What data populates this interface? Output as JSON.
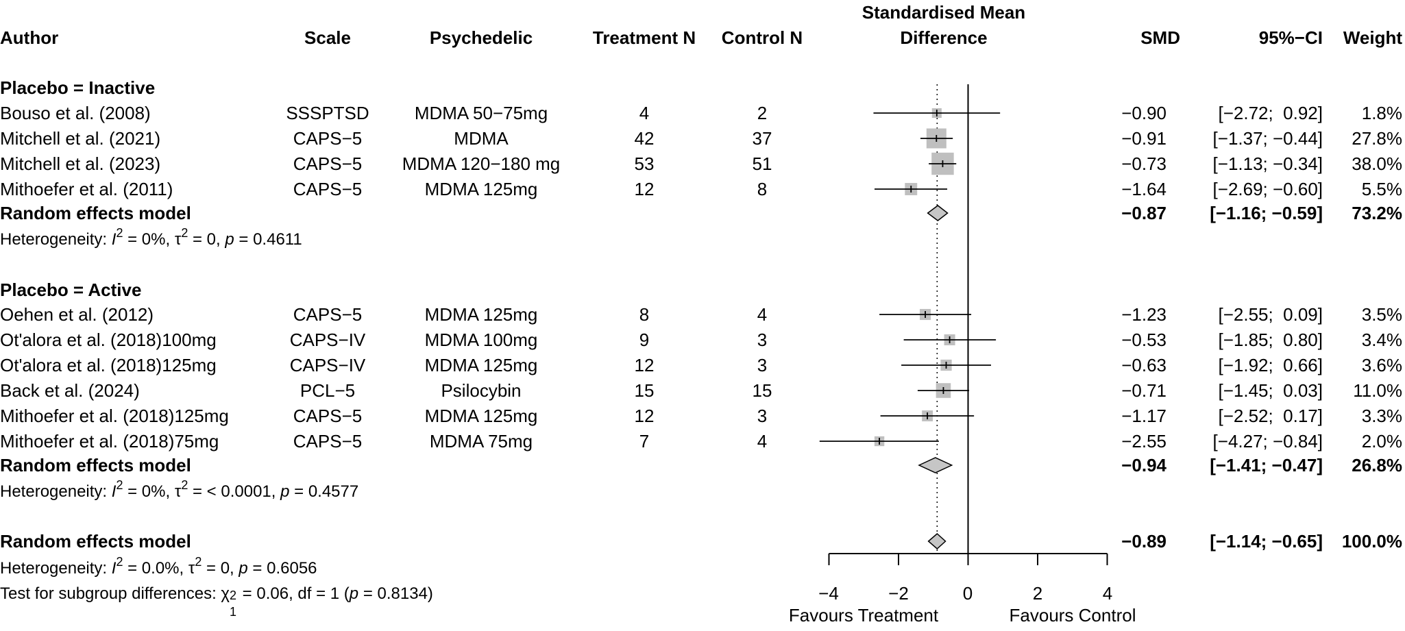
{
  "header": {
    "author": "Author",
    "scale": "Scale",
    "psychedelic": "Psychedelic",
    "treatment_n": "Treatment N",
    "control_n": "Control N",
    "smd_title_line1": "Standardised Mean",
    "smd_title_line2": "Difference",
    "smd": "SMD",
    "ci": "95%−CI",
    "weight": "Weight"
  },
  "groups": [
    {
      "title": "Placebo = Inactive",
      "studies": [
        {
          "author": "Bouso et al. (2008)",
          "scale": "SSSPTSD",
          "psychedelic": "MDMA 50−75mg",
          "tn": "4",
          "cn": "2",
          "smd": "−0.90",
          "ci": "[−2.72;  0.92]",
          "weight": "1.8%"
        },
        {
          "author": "Mitchell et al. (2021)",
          "scale": "CAPS−5",
          "psychedelic": "MDMA",
          "tn": "42",
          "cn": "37",
          "smd": "−0.91",
          "ci": "[−1.37; −0.44]",
          "weight": "27.8%"
        },
        {
          "author": "Mitchell et al. (2023)",
          "scale": "CAPS−5",
          "psychedelic": "MDMA 120−180 mg",
          "tn": "53",
          "cn": "51",
          "smd": "−0.73",
          "ci": "[−1.13; −0.34]",
          "weight": "38.0%"
        },
        {
          "author": "Mithoefer et al. (2011)",
          "scale": "CAPS−5",
          "psychedelic": "MDMA 125mg",
          "tn": "12",
          "cn": "8",
          "smd": "−1.64",
          "ci": "[−2.69; −0.60]",
          "weight": "5.5%"
        }
      ],
      "model": {
        "label": "Random effects model",
        "smd": "−0.87",
        "ci": "[−1.16; −0.59]",
        "weight": "73.2%"
      },
      "heterogeneity": {
        "prefix": "Heterogeneity: ",
        "i2": "I",
        "i2_value": " = 0%, τ",
        "tau2_value": " = 0, ",
        "p": "p",
        "p_value": " = 0.4611"
      }
    },
    {
      "title": "Placebo = Active",
      "studies": [
        {
          "author": "Oehen et al. (2012)",
          "scale": "CAPS−5",
          "psychedelic": "MDMA 125mg",
          "tn": "8",
          "cn": "4",
          "smd": "−1.23",
          "ci": "[−2.55;  0.09]",
          "weight": "3.5%"
        },
        {
          "author": "Ot'alora et al. (2018)100mg",
          "scale": "CAPS−IV",
          "psychedelic": "MDMA 100mg",
          "tn": "9",
          "cn": "3",
          "smd": "−0.53",
          "ci": "[−1.85;  0.80]",
          "weight": "3.4%"
        },
        {
          "author": "Ot'alora et al. (2018)125mg",
          "scale": "CAPS−IV",
          "psychedelic": "MDMA 125mg",
          "tn": "12",
          "cn": "3",
          "smd": "−0.63",
          "ci": "[−1.92;  0.66]",
          "weight": "3.6%"
        },
        {
          "author": "Back et al. (2024)",
          "scale": "PCL−5",
          "psychedelic": "Psilocybin",
          "tn": "15",
          "cn": "15",
          "smd": "−0.71",
          "ci": "[−1.45;  0.03]",
          "weight": "11.0%"
        },
        {
          "author": "Mithoefer et al. (2018)125mg",
          "scale": "CAPS−5",
          "psychedelic": "MDMA 125mg",
          "tn": "12",
          "cn": "3",
          "smd": "−1.17",
          "ci": "[−2.52;  0.17]",
          "weight": "3.3%"
        },
        {
          "author": "Mithoefer et al. (2018)75mg",
          "scale": "CAPS−5",
          "psychedelic": "MDMA 75mg",
          "tn": "7",
          "cn": "4",
          "smd": "−2.55",
          "ci": "[−4.27; −0.84]",
          "weight": "2.0%"
        }
      ],
      "model": {
        "label": "Random effects model",
        "smd": "−0.94",
        "ci": "[−1.41; −0.47]",
        "weight": "26.8%"
      },
      "heterogeneity": {
        "prefix": "Heterogeneity: ",
        "i2": "I",
        "i2_value": " = 0%, τ",
        "tau2_value": " = < 0.0001, ",
        "p": "p",
        "p_value": " = 0.4577"
      }
    }
  ],
  "overall": {
    "label": "Random effects model",
    "smd": "−0.89",
    "ci": "[−1.14; −0.65]",
    "weight": "100.0%",
    "heterogeneity": {
      "prefix": "Heterogeneity: ",
      "i2": "I",
      "i2_value": " = 0.0%, τ",
      "tau2_value": " = 0, ",
      "p": "p",
      "p_value": " = 0.6056"
    },
    "subgroup_test": {
      "prefix": "Test for subgroup differences: χ",
      "df1": "1",
      "chi_value": " = 0.06, df = 1 (",
      "p": "p",
      "p_value": " = 0.8134)"
    }
  },
  "superscript_2": "2",
  "axis": {
    "ticks": [
      -4,
      -2,
      0,
      2,
      4
    ],
    "tick_labels": [
      "−4",
      "−2",
      "0",
      "2",
      "4"
    ],
    "left_label": "Favours Treatment",
    "right_label": "Favours Control"
  },
  "chart_data": {
    "type": "forest",
    "title": "Standardised Mean Difference",
    "xlim": [
      -4,
      4
    ],
    "null_line": 0,
    "pooled_reference_line": -0.89,
    "series": [
      {
        "name": "Placebo = Inactive",
        "studies": [
          {
            "label": "Bouso et al. (2008)",
            "smd": -0.9,
            "lo": -2.72,
            "hi": 0.92,
            "weight": 1.8
          },
          {
            "label": "Mitchell et al. (2021)",
            "smd": -0.91,
            "lo": -1.37,
            "hi": -0.44,
            "weight": 27.8
          },
          {
            "label": "Mitchell et al. (2023)",
            "smd": -0.73,
            "lo": -1.13,
            "hi": -0.34,
            "weight": 38.0
          },
          {
            "label": "Mithoefer et al. (2011)",
            "smd": -1.64,
            "lo": -2.69,
            "hi": -0.6,
            "weight": 5.5
          }
        ],
        "pooled": {
          "smd": -0.87,
          "lo": -1.16,
          "hi": -0.59,
          "weight": 73.2
        }
      },
      {
        "name": "Placebo = Active",
        "studies": [
          {
            "label": "Oehen et al. (2012)",
            "smd": -1.23,
            "lo": -2.55,
            "hi": 0.09,
            "weight": 3.5
          },
          {
            "label": "Ot'alora et al. (2018)100mg",
            "smd": -0.53,
            "lo": -1.85,
            "hi": 0.8,
            "weight": 3.4
          },
          {
            "label": "Ot'alora et al. (2018)125mg",
            "smd": -0.63,
            "lo": -1.92,
            "hi": 0.66,
            "weight": 3.6
          },
          {
            "label": "Back et al. (2024)",
            "smd": -0.71,
            "lo": -1.45,
            "hi": 0.03,
            "weight": 11.0
          },
          {
            "label": "Mithoefer et al. (2018)125mg",
            "smd": -1.17,
            "lo": -2.52,
            "hi": 0.17,
            "weight": 3.3
          },
          {
            "label": "Mithoefer et al. (2018)75mg",
            "smd": -2.55,
            "lo": -4.27,
            "hi": -0.84,
            "weight": 2.0
          }
        ],
        "pooled": {
          "smd": -0.94,
          "lo": -1.41,
          "hi": -0.47,
          "weight": 26.8
        }
      }
    ],
    "overall": {
      "smd": -0.89,
      "lo": -1.14,
      "hi": -0.65,
      "weight": 100.0
    },
    "xlabel_left": "Favours Treatment",
    "xlabel_right": "Favours Control"
  }
}
